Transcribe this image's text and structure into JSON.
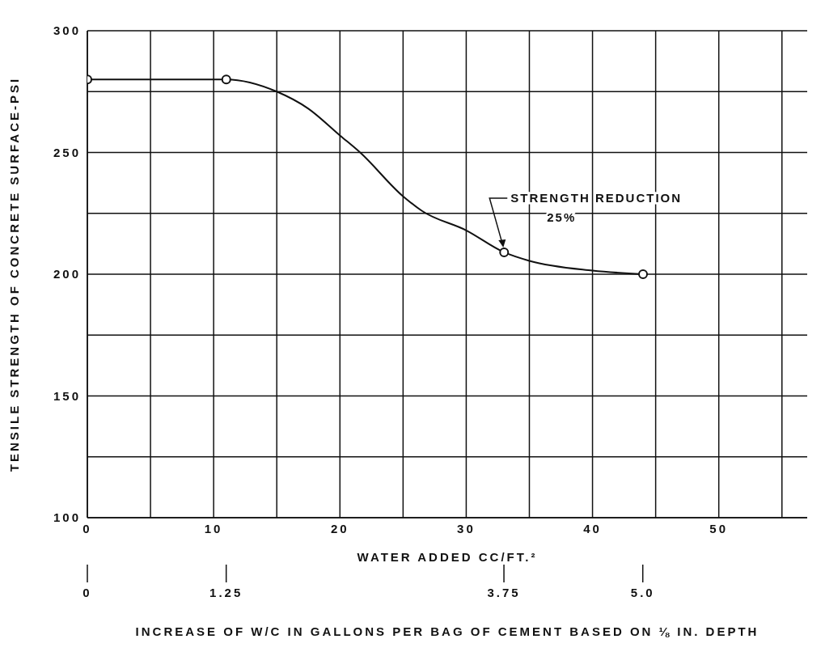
{
  "chart_data": {
    "type": "line",
    "xlabel": "WATER ADDED CC/FT.²",
    "x2label": "INCREASE OF W/C IN GALLONS PER BAG OF CEMENT BASED ON ⅛ IN. DEPTH",
    "ylabel": "TENSILE STRENGTH OF CONCRETE SURFACE-PSI",
    "xlim": [
      0,
      57
    ],
    "xticks": [
      0,
      {
        "value": 5,
        "label": null
      },
      10,
      {
        "value": 15,
        "label": null
      },
      20,
      {
        "value": 25,
        "label": null
      },
      30,
      {
        "value": 35,
        "label": null
      },
      40,
      {
        "value": 45,
        "label": null
      },
      50,
      {
        "value": 55,
        "label": null
      }
    ],
    "x2lim": [
      0,
      6.48
    ],
    "x2ticks": [
      0,
      1.25,
      3.75,
      {
        "value": 5,
        "label": "5.0"
      }
    ],
    "ylim": [
      100,
      300
    ],
    "yticks": [
      100,
      {
        "value": 125,
        "label": null
      },
      150,
      {
        "value": 175,
        "label": null
      },
      200,
      {
        "value": 225,
        "label": null
      },
      250,
      {
        "value": 275,
        "label": null
      },
      300
    ],
    "grid": true,
    "line_style": "solid",
    "marker": "circle",
    "series": [
      {
        "marker": "none",
        "color": "#111111",
        "x": [
          0,
          11,
          15,
          17.5,
          20,
          21.6,
          25,
          26.5,
          30,
          33,
          35,
          40,
          44
        ],
        "values": [
          280,
          280,
          275,
          268,
          257,
          250,
          232,
          226,
          218,
          209,
          205.5,
          201.5,
          200
        ]
      },
      {
        "type": "scatter",
        "color": "#111111",
        "x": [
          0,
          11,
          33,
          44
        ],
        "values": [
          280,
          280,
          209,
          200
        ]
      }
    ],
    "annotations": [
      {
        "text": "STRENGTH REDUCTION\n25%",
        "x": 33,
        "y": 209
      }
    ]
  }
}
